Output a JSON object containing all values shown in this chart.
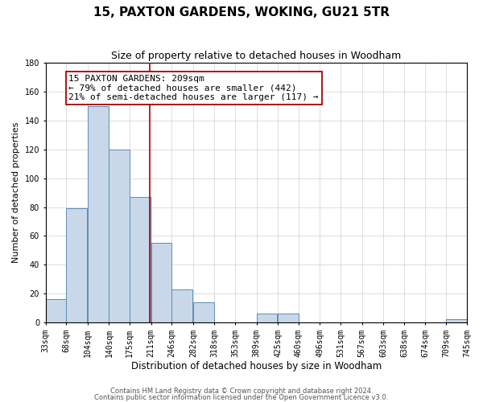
{
  "title": "15, PAXTON GARDENS, WOKING, GU21 5TR",
  "subtitle": "Size of property relative to detached houses in Woodham",
  "xlabel": "Distribution of detached houses by size in Woodham",
  "ylabel": "Number of detached properties",
  "bar_left_edges": [
    33,
    68,
    104,
    140,
    175,
    211,
    246,
    282,
    318,
    353,
    389,
    425,
    460,
    496,
    531,
    567,
    603,
    638,
    674,
    709
  ],
  "bar_heights": [
    16,
    79,
    150,
    120,
    87,
    55,
    23,
    14,
    0,
    0,
    6,
    6,
    0,
    0,
    0,
    0,
    0,
    0,
    0,
    2
  ],
  "bin_width": 35,
  "bar_color": "#c8d8e8",
  "bar_edge_color": "#5b8db8",
  "ylim": [
    0,
    180
  ],
  "yticks": [
    0,
    20,
    40,
    60,
    80,
    100,
    120,
    140,
    160,
    180
  ],
  "xtick_labels": [
    "33sqm",
    "68sqm",
    "104sqm",
    "140sqm",
    "175sqm",
    "211sqm",
    "246sqm",
    "282sqm",
    "318sqm",
    "353sqm",
    "389sqm",
    "425sqm",
    "460sqm",
    "496sqm",
    "531sqm",
    "567sqm",
    "603sqm",
    "638sqm",
    "674sqm",
    "709sqm",
    "745sqm"
  ],
  "vline_x": 209,
  "vline_color": "#aa0000",
  "annotation_line1": "15 PAXTON GARDENS: 209sqm",
  "annotation_line2": "← 79% of detached houses are smaller (442)",
  "annotation_line3": "21% of semi-detached houses are larger (117) →",
  "grid_color": "#d0d0d0",
  "bg_color": "#ffffff",
  "footnote1": "Contains HM Land Registry data © Crown copyright and database right 2024.",
  "footnote2": "Contains public sector information licensed under the Open Government Licence v3.0.",
  "title_fontsize": 11,
  "subtitle_fontsize": 9,
  "xlabel_fontsize": 8.5,
  "ylabel_fontsize": 8,
  "tick_fontsize": 7,
  "annotation_fontsize": 8,
  "footnote_fontsize": 6
}
